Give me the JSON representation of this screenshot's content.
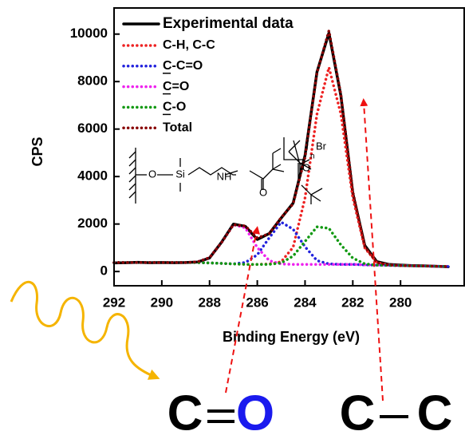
{
  "chart_data": {
    "type": "line",
    "xlabel": "Binding Energy (eV)",
    "ylabel": "CPS",
    "xlim": [
      292,
      277.3
    ],
    "ylim": [
      -600,
      11100
    ],
    "xticks": [
      292,
      290,
      288,
      286,
      284,
      282,
      280
    ],
    "yticks": [
      0,
      2000,
      4000,
      6000,
      8000,
      10000
    ],
    "legend": "upper left",
    "x": [
      292,
      291.5,
      291,
      290.5,
      290,
      289.5,
      289,
      288.5,
      288,
      287.5,
      287,
      286.5,
      286,
      285.5,
      285,
      284.5,
      284,
      283.5,
      283,
      282.5,
      282,
      281.5,
      281,
      280.5,
      280,
      279.5,
      279,
      278.5,
      278
    ],
    "series": [
      {
        "name": "Experimental data",
        "color": "#000000",
        "line_style": "solid",
        "values": [
          360,
          370,
          390,
          370,
          380,
          370,
          380,
          400,
          570,
          1230,
          2000,
          1900,
          1350,
          1600,
          2250,
          2880,
          4900,
          8400,
          10050,
          7400,
          3300,
          1100,
          420,
          300,
          270,
          250,
          240,
          220,
          200
        ]
      },
      {
        "name": "C-H, C-C",
        "color": "#ee2222",
        "line_style": "dotted",
        "values": [
          380,
          380,
          380,
          380,
          380,
          380,
          380,
          380,
          360,
          340,
          320,
          300,
          300,
          317,
          410,
          1020,
          3110,
          6630,
          8600,
          6630,
          3110,
          1000,
          380,
          277,
          250,
          240,
          230,
          220,
          210
        ]
      },
      {
        "name": "C-C=O",
        "color": "#2222dd",
        "line_style": "dotted",
        "values": [
          380,
          380,
          380,
          380,
          380,
          380,
          380,
          380,
          360,
          340,
          320,
          377,
          705,
          1420,
          2080,
          1780,
          1040,
          460,
          321,
          300,
          300,
          280,
          270,
          260,
          250,
          240,
          230,
          220,
          210
        ]
      },
      {
        "name": "C=O",
        "color": "#ee22ee",
        "line_style": "dotted",
        "values": [
          380,
          380,
          380,
          380,
          380,
          380,
          380,
          409,
          588,
          1215,
          1970,
          1840,
          1008,
          460,
          319,
          300,
          300,
          300,
          300,
          300,
          300,
          280,
          270,
          260,
          250,
          240,
          230,
          220,
          210
        ]
      },
      {
        "name": "C-O",
        "color": "#119911",
        "line_style": "dotted",
        "values": [
          380,
          380,
          380,
          380,
          380,
          380,
          380,
          380,
          360,
          340,
          320,
          300,
          300,
          300,
          360,
          650,
          1270,
          1880,
          1820,
          1125,
          565,
          325,
          270,
          260,
          250,
          240,
          230,
          220,
          210
        ]
      },
      {
        "name": "Total",
        "color": "#880000",
        "line_style": "dotted",
        "values": [
          380,
          380,
          380,
          380,
          380,
          380,
          380,
          409,
          588,
          1215,
          1970,
          1917,
          1413,
          1597,
          2269,
          2850,
          4820,
          8370,
          10141,
          7455,
          3375,
          1045,
          380,
          277,
          250,
          240,
          230,
          220,
          210
        ]
      }
    ],
    "legend_underline": [
      "C-C=O",
      "C=O",
      "C-O"
    ],
    "molecule": [
      "O",
      "Si",
      "NH",
      "O",
      "O",
      "Br",
      "n"
    ],
    "annotations": {
      "carbonyl": [
        "C",
        "O"
      ],
      "alkyl": [
        "C",
        "C"
      ]
    }
  }
}
